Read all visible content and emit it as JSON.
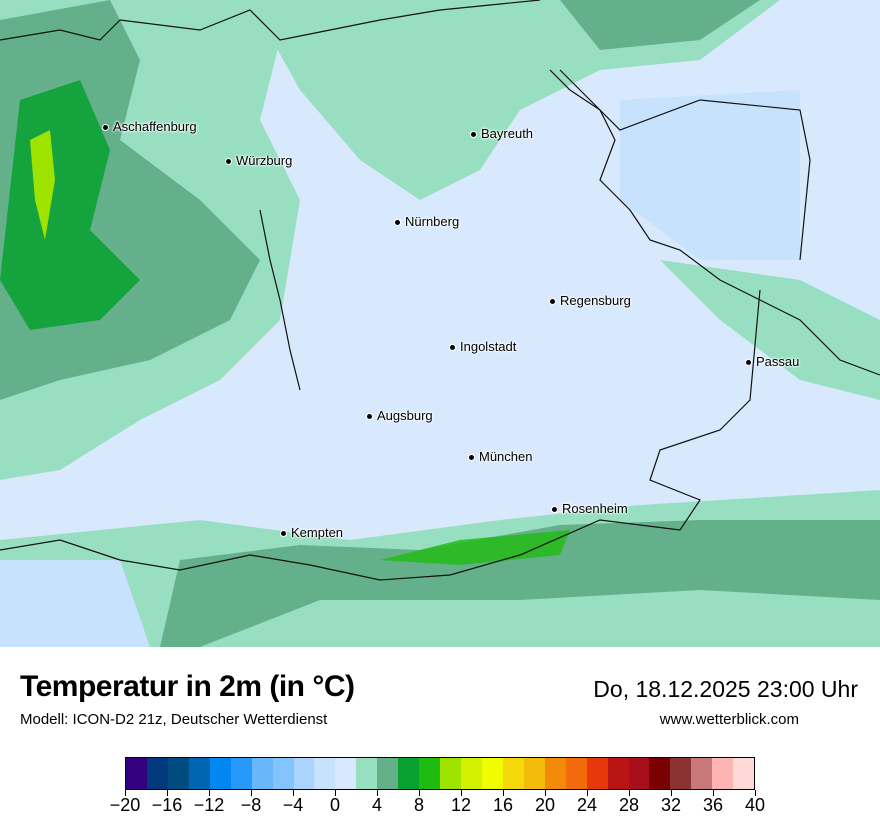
{
  "map": {
    "cities": [
      {
        "name": "Aschaffenburg"
      },
      {
        "name": "Würzburg"
      },
      {
        "name": "Bayreuth"
      },
      {
        "name": "Nürnberg"
      },
      {
        "name": "Regensburg"
      },
      {
        "name": "Ingolstadt"
      },
      {
        "name": "Passau"
      },
      {
        "name": "Augsburg"
      },
      {
        "name": "München"
      },
      {
        "name": "Rosenheim"
      },
      {
        "name": "Kempten"
      }
    ],
    "background_color": "#d8e9fd"
  },
  "header": {
    "title": "Temperatur in 2m (in °C)",
    "subtitle": "Modell: ICON-D2 21z, Deutscher Wetterdienst",
    "datetime": "Do, 18.12.2025 23:00 Uhr",
    "website": "www.wetterblick.com"
  },
  "legend": {
    "colors": [
      "#330080",
      "#003a7d",
      "#004b80",
      "#0066b3",
      "#0088f0",
      "#2799fb",
      "#6ab6fb",
      "#84c4fd",
      "#a8d4fd",
      "#c6e2fd",
      "#d8e9fd",
      "#98dfc2",
      "#64b08a",
      "#06a12f",
      "#20bb10",
      "#9ee200",
      "#d2f000",
      "#f2fc00",
      "#f5d70a",
      "#f4bc0a",
      "#f28a0a",
      "#f26a0a",
      "#e6380a",
      "#b81414",
      "#a80f1c",
      "#780000",
      "#8b3333",
      "#c87878",
      "#ffb4b4",
      "#ffd8d8"
    ],
    "tick_labels": [
      "−20",
      "−16",
      "−12",
      "−8",
      "−4",
      "0",
      "4",
      "8",
      "12",
      "16",
      "20",
      "24",
      "28",
      "32",
      "36",
      "40"
    ]
  }
}
